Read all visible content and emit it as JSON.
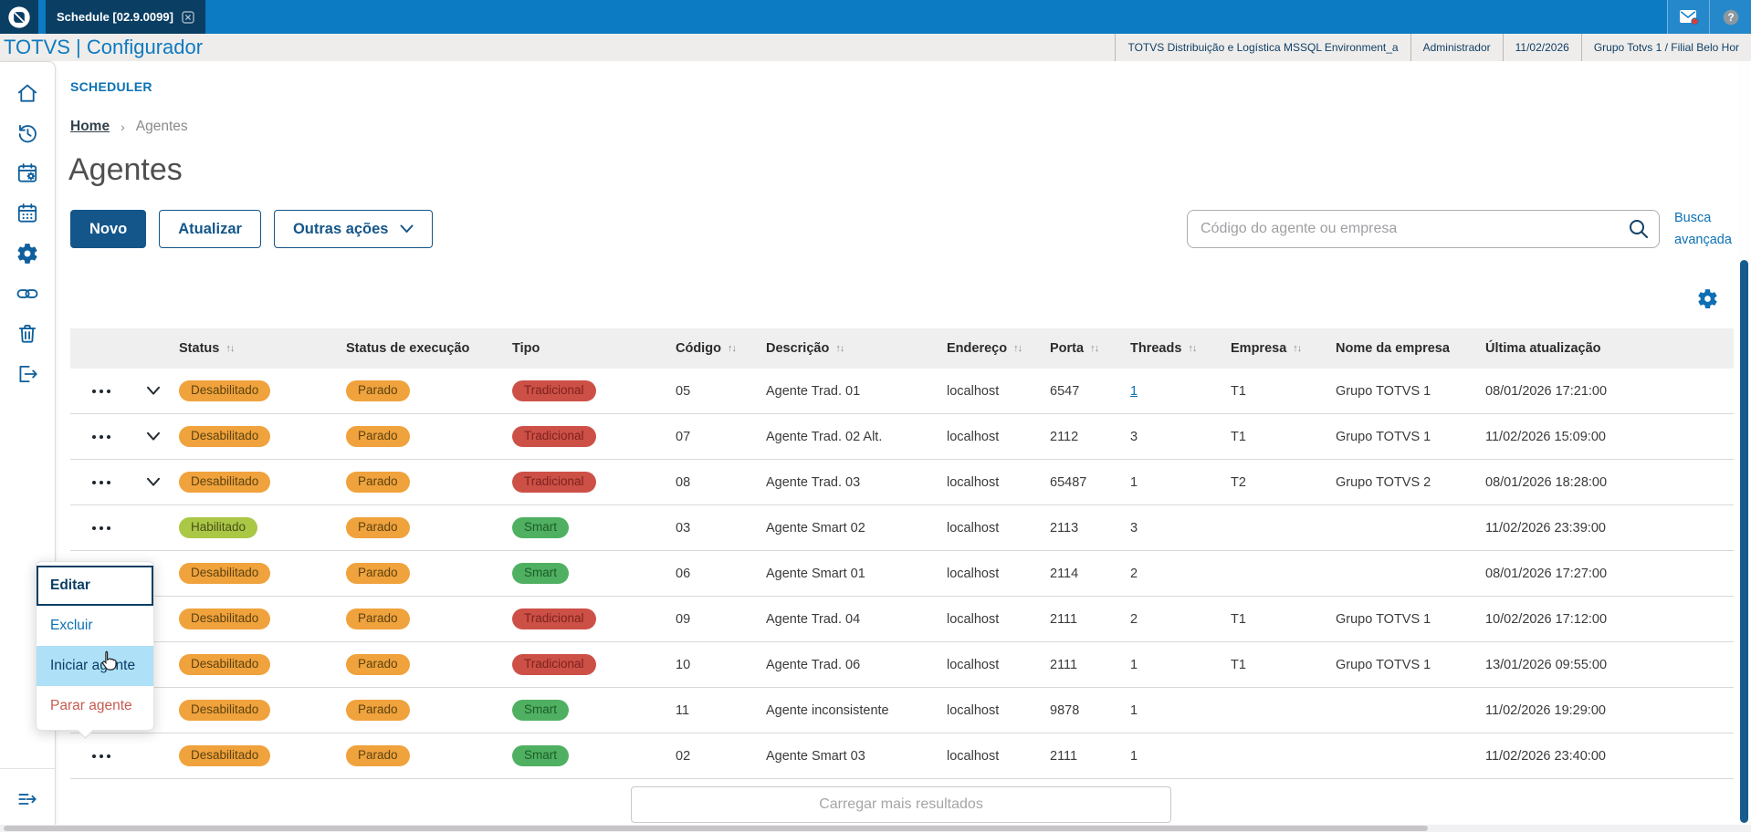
{
  "window": {
    "tab_title": "Schedule [02.9.0099]"
  },
  "header": {
    "app_title": "TOTVS | Configurador",
    "environment": "TOTVS Distribuição e Logística MSSQL Environment_a",
    "user": "Administrador",
    "date": "11/02/2026",
    "company": "Grupo Totvs 1 / Filial Belo Hor"
  },
  "sidebar": {
    "items": [
      {
        "name": "home",
        "icon": "home-icon"
      },
      {
        "name": "history",
        "icon": "history-icon"
      },
      {
        "name": "schedule-settings",
        "icon": "schedule-settings-icon"
      },
      {
        "name": "calendar",
        "icon": "calendar-icon"
      },
      {
        "name": "settings",
        "icon": "settings-icon"
      },
      {
        "name": "link",
        "icon": "link-icon"
      },
      {
        "name": "trash",
        "icon": "trash-icon"
      },
      {
        "name": "logout",
        "icon": "logout-icon"
      }
    ],
    "footer_item": {
      "name": "expand-menu",
      "icon": "expand-menu-icon"
    }
  },
  "page": {
    "section": "SCHEDULER",
    "breadcrumb": {
      "home": "Home",
      "current": "Agentes"
    },
    "title": "Agentes"
  },
  "toolbar": {
    "new_label": "Novo",
    "refresh_label": "Atualizar",
    "other_actions_label": "Outras ações",
    "search_placeholder": "Código do agente ou empresa",
    "advanced_search_label": "Busca avançada"
  },
  "table": {
    "columns": [
      {
        "label": "",
        "sortable": false
      },
      {
        "label": "",
        "sortable": false
      },
      {
        "label": "Status",
        "sortable": true
      },
      {
        "label": "Status de execução",
        "sortable": false
      },
      {
        "label": "Tipo",
        "sortable": false
      },
      {
        "label": "Código",
        "sortable": true
      },
      {
        "label": "Descrição",
        "sortable": true
      },
      {
        "label": "Endereço",
        "sortable": true
      },
      {
        "label": "Porta",
        "sortable": true
      },
      {
        "label": "Threads",
        "sortable": true
      },
      {
        "label": "Empresa",
        "sortable": true
      },
      {
        "label": "Nome da empresa",
        "sortable": false
      },
      {
        "label": "Última atualização",
        "sortable": false
      }
    ],
    "rows": [
      {
        "expandable": true,
        "status": "Desabilitado",
        "status_variant": "warning",
        "exec": "Parado",
        "exec_variant": "warning",
        "tipo": "Tradicional",
        "tipo_variant": "danger",
        "codigo": "05",
        "descricao": "Agente Trad. 01",
        "endereco": "localhost",
        "porta": "6547",
        "threads": "1",
        "threads_link": true,
        "empresa": "T1",
        "nome_empresa": "Grupo TOTVS 1",
        "atualizacao": "08/01/2026 17:21:00"
      },
      {
        "expandable": true,
        "status": "Desabilitado",
        "status_variant": "warning",
        "exec": "Parado",
        "exec_variant": "warning",
        "tipo": "Tradicional",
        "tipo_variant": "danger",
        "codigo": "07",
        "descricao": "Agente Trad. 02 Alt.",
        "endereco": "localhost",
        "porta": "2112",
        "threads": "3",
        "threads_link": false,
        "empresa": "T1",
        "nome_empresa": "Grupo TOTVS 1",
        "atualizacao": "11/02/2026 15:09:00"
      },
      {
        "expandable": true,
        "status": "Desabilitado",
        "status_variant": "warning",
        "exec": "Parado",
        "exec_variant": "warning",
        "tipo": "Tradicional",
        "tipo_variant": "danger",
        "codigo": "08",
        "descricao": "Agente Trad. 03",
        "endereco": "localhost",
        "porta": "65487",
        "threads": "1",
        "threads_link": false,
        "empresa": "T2",
        "nome_empresa": "Grupo TOTVS 2",
        "atualizacao": "08/01/2026 18:28:00"
      },
      {
        "expandable": false,
        "status": "Habilitado",
        "status_variant": "enabled",
        "exec": "Parado",
        "exec_variant": "warning",
        "tipo": "Smart",
        "tipo_variant": "success",
        "codigo": "03",
        "descricao": "Agente Smart 02",
        "endereco": "localhost",
        "porta": "2113",
        "threads": "3",
        "threads_link": false,
        "empresa": "",
        "nome_empresa": "",
        "atualizacao": "11/02/2026 23:39:00"
      },
      {
        "expandable": false,
        "status": "Desabilitado",
        "status_variant": "warning",
        "exec": "Parado",
        "exec_variant": "warning",
        "tipo": "Smart",
        "tipo_variant": "success",
        "codigo": "06",
        "descricao": "Agente Smart 01",
        "endereco": "localhost",
        "porta": "2114",
        "threads": "2",
        "threads_link": false,
        "empresa": "",
        "nome_empresa": "",
        "atualizacao": "08/01/2026 17:27:00"
      },
      {
        "expandable": false,
        "status": "Desabilitado",
        "status_variant": "warning",
        "exec": "Parado",
        "exec_variant": "warning",
        "tipo": "Tradicional",
        "tipo_variant": "danger",
        "codigo": "09",
        "descricao": "Agente Trad. 04",
        "endereco": "localhost",
        "porta": "2111",
        "threads": "2",
        "threads_link": false,
        "empresa": "T1",
        "nome_empresa": "Grupo TOTVS 1",
        "atualizacao": "10/02/2026 17:12:00"
      },
      {
        "expandable": false,
        "status": "Desabilitado",
        "status_variant": "warning",
        "exec": "Parado",
        "exec_variant": "warning",
        "tipo": "Tradicional",
        "tipo_variant": "danger",
        "codigo": "10",
        "descricao": "Agente Trad. 06",
        "endereco": "localhost",
        "porta": "2111",
        "threads": "1",
        "threads_link": false,
        "empresa": "T1",
        "nome_empresa": "Grupo TOTVS 1",
        "atualizacao": "13/01/2026 09:55:00"
      },
      {
        "expandable": false,
        "status": "Desabilitado",
        "status_variant": "warning",
        "exec": "Parado",
        "exec_variant": "warning",
        "tipo": "Smart",
        "tipo_variant": "success",
        "codigo": "11",
        "descricao": "Agente inconsistente",
        "endereco": "localhost",
        "porta": "9878",
        "threads": "1",
        "threads_link": false,
        "empresa": "",
        "nome_empresa": "",
        "atualizacao": "11/02/2026 19:29:00"
      },
      {
        "expandable": false,
        "status": "Desabilitado",
        "status_variant": "warning",
        "exec": "Parado",
        "exec_variant": "warning",
        "tipo": "Smart",
        "tipo_variant": "success",
        "codigo": "02",
        "descricao": "Agente Smart 03",
        "endereco": "localhost",
        "porta": "2111",
        "threads": "1",
        "threads_link": false,
        "empresa": "",
        "nome_empresa": "",
        "atualizacao": "11/02/2026 23:40:00"
      }
    ]
  },
  "context_menu": {
    "items": [
      {
        "label": "Editar",
        "state": "focused"
      },
      {
        "label": "Excluir",
        "state": ""
      },
      {
        "label": "Iniciar agente",
        "state": "hover"
      },
      {
        "label": "Parar agente",
        "state": "danger"
      }
    ]
  },
  "load_more_label": "Carregar mais resultados",
  "colors": {
    "topbar_blue": "#0d7bc4",
    "tab_navy": "#0a3e63",
    "primary_button": "#14568a",
    "link_blue": "#0c71b5",
    "badge_warning": "#f0a23c",
    "badge_danger": "#cd5047",
    "badge_success": "#4fb061",
    "badge_enabled": "#abc746",
    "menu_highlight": "#aee0f7",
    "scrollbar_thumb": "#175c8d"
  }
}
